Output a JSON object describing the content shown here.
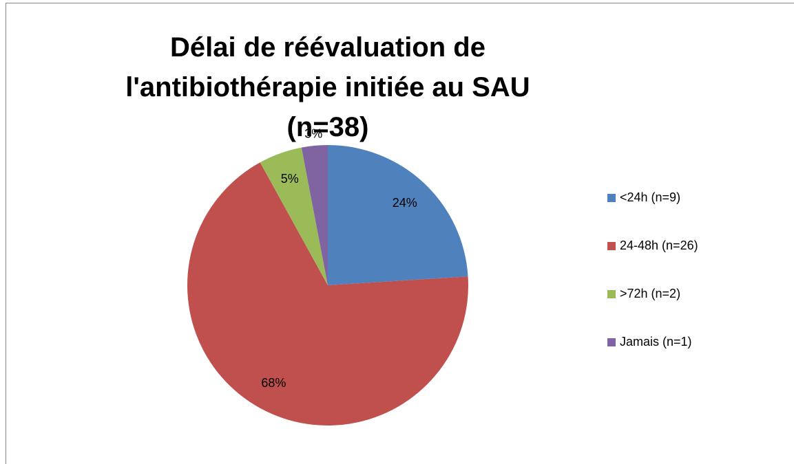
{
  "chart_data": {
    "type": "pie",
    "title": "Délai de réévaluation de l'antibiothérapie initiée au SAU (n=38)",
    "categories": [
      "<24h (n=9)",
      "24-48h (n=26)",
      ">72h (n=2)",
      "Jamais (n=1)"
    ],
    "values": [
      24,
      68,
      5,
      3
    ],
    "value_labels": [
      "24%",
      "68%",
      "5%",
      "3%"
    ],
    "colors": [
      "#4f81bd",
      "#c0504d",
      "#9bbb59",
      "#8064a2"
    ],
    "legend": "right"
  }
}
